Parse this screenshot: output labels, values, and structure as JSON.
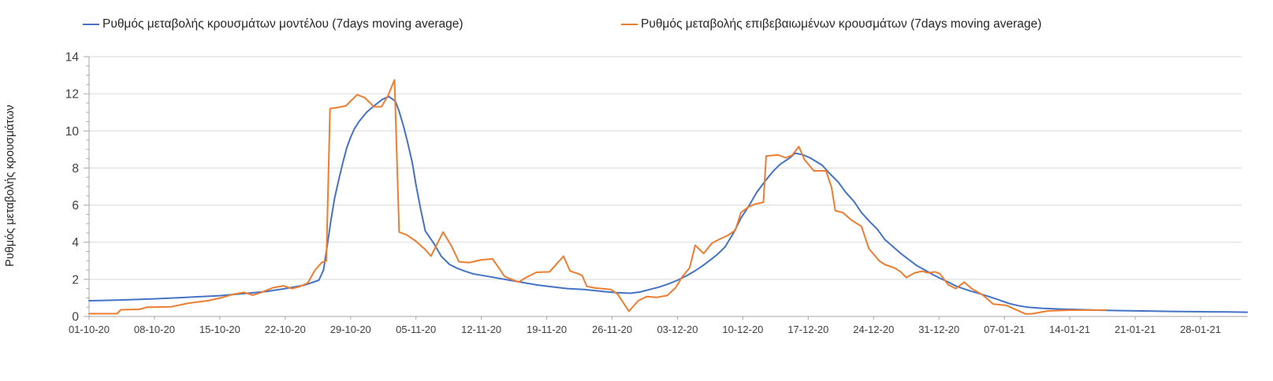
{
  "chart": {
    "y_axis": {
      "title": "Ρυθμός μεταβολής κρουσμάτων",
      "tick_labels": [
        "0",
        "2",
        "4",
        "6",
        "8",
        "10",
        "12",
        "14"
      ],
      "min": 0,
      "max": 14,
      "major_step": 2,
      "minor_step": 0.5
    },
    "x_axis": {
      "tick_labels": [
        "01-10-20",
        "08-10-20",
        "15-10-20",
        "22-10-20",
        "29-10-20",
        "05-11-20",
        "12-11-20",
        "19-11-20",
        "26-11-20",
        "03-12-20",
        "10-12-20",
        "17-12-20",
        "24-12-20",
        "31-12-20",
        "07-01-21",
        "14-01-21",
        "21-01-21",
        "28-01-21"
      ],
      "days_between_ticks": 7
    },
    "colors": {
      "grid": "#d9d9d9",
      "axis": "#a6a6a6",
      "tick_text": "#404040",
      "title_text": "#262626",
      "model_line": "#4472c4",
      "confirmed_line": "#ed7d31"
    }
  },
  "chart_data": {
    "type": "line",
    "title": "",
    "xlabel": "",
    "ylabel": "Ρυθμός μεταβολής κρουσμάτων",
    "x_unit": "days since 01-10-2020; axis labels every 7 days",
    "xlim": [
      0,
      124
    ],
    "ylim": [
      0,
      14
    ],
    "grid": true,
    "legend_position": "top",
    "series": [
      {
        "name": "Ρυθμός μεταβολής κρουσμάτων μοντέλου (7days moving average)",
        "color": "#4472c4",
        "points": [
          [
            0,
            0.85
          ],
          [
            3,
            0.88
          ],
          [
            7,
            0.95
          ],
          [
            10,
            1.02
          ],
          [
            14,
            1.12
          ],
          [
            17,
            1.25
          ],
          [
            19,
            1.35
          ],
          [
            21,
            1.5
          ],
          [
            23,
            1.68
          ],
          [
            24.6,
            1.95
          ],
          [
            25.1,
            2.5
          ],
          [
            25.5,
            3.8
          ],
          [
            25.9,
            5.2
          ],
          [
            26.3,
            6.4
          ],
          [
            26.8,
            7.5
          ],
          [
            27.2,
            8.35
          ],
          [
            27.6,
            9.1
          ],
          [
            28,
            9.65
          ],
          [
            28.4,
            10.1
          ],
          [
            28.9,
            10.5
          ],
          [
            29.7,
            11
          ],
          [
            30.4,
            11.3
          ],
          [
            31.4,
            11.7
          ],
          [
            32.1,
            11.85
          ],
          [
            32.8,
            11.6
          ],
          [
            33.2,
            11.05
          ],
          [
            33.7,
            10.2
          ],
          [
            34.1,
            9.4
          ],
          [
            34.6,
            8.3
          ],
          [
            35,
            7.1
          ],
          [
            35.5,
            5.8
          ],
          [
            36,
            4.6
          ],
          [
            36.9,
            3.95
          ],
          [
            37.7,
            3.25
          ],
          [
            38.6,
            2.8
          ],
          [
            39.4,
            2.6
          ],
          [
            40.2,
            2.45
          ],
          [
            41.1,
            2.3
          ],
          [
            42.8,
            2.15
          ],
          [
            44.5,
            2
          ],
          [
            46.2,
            1.85
          ],
          [
            47.9,
            1.7
          ],
          [
            49.5,
            1.6
          ],
          [
            51.2,
            1.5
          ],
          [
            53,
            1.45
          ],
          [
            55,
            1.35
          ],
          [
            56.5,
            1.28
          ],
          [
            58,
            1.25
          ],
          [
            59,
            1.32
          ],
          [
            60,
            1.45
          ],
          [
            61,
            1.58
          ],
          [
            62,
            1.75
          ],
          [
            63,
            1.95
          ],
          [
            64,
            2.2
          ],
          [
            64.7,
            2.4
          ],
          [
            65.6,
            2.7
          ],
          [
            66.4,
            3
          ],
          [
            67.3,
            3.35
          ],
          [
            68.1,
            3.75
          ],
          [
            69,
            4.5
          ],
          [
            69.8,
            5.3
          ],
          [
            70.7,
            6
          ],
          [
            71.5,
            6.7
          ],
          [
            72.4,
            7.3
          ],
          [
            73.2,
            7.8
          ],
          [
            74,
            8.2
          ],
          [
            74.9,
            8.5
          ],
          [
            75.6,
            8.8
          ],
          [
            76.4,
            8.72
          ],
          [
            77.2,
            8.55
          ],
          [
            78.5,
            8.15
          ],
          [
            79.3,
            7.7
          ],
          [
            80.2,
            7.25
          ],
          [
            81,
            6.7
          ],
          [
            81.9,
            6.2
          ],
          [
            82.7,
            5.6
          ],
          [
            83.5,
            5.15
          ],
          [
            84.4,
            4.7
          ],
          [
            85.2,
            4.15
          ],
          [
            86.1,
            3.75
          ],
          [
            86.9,
            3.4
          ],
          [
            87.8,
            3.05
          ],
          [
            88.6,
            2.75
          ],
          [
            89.5,
            2.5
          ],
          [
            90.3,
            2.27
          ],
          [
            91.1,
            2.06
          ],
          [
            92,
            1.85
          ],
          [
            92.8,
            1.64
          ],
          [
            93.7,
            1.48
          ],
          [
            94.5,
            1.35
          ],
          [
            95.4,
            1.22
          ],
          [
            96.5,
            1.05
          ],
          [
            97.5,
            0.88
          ],
          [
            98.5,
            0.7
          ],
          [
            99.5,
            0.58
          ],
          [
            100.5,
            0.5
          ],
          [
            102,
            0.44
          ],
          [
            104,
            0.4
          ],
          [
            106,
            0.37
          ],
          [
            108,
            0.34
          ],
          [
            110,
            0.32
          ],
          [
            112,
            0.3
          ],
          [
            114,
            0.29
          ],
          [
            116,
            0.27
          ],
          [
            118,
            0.26
          ],
          [
            120,
            0.25
          ],
          [
            122,
            0.24
          ],
          [
            124,
            0.23
          ]
        ]
      },
      {
        "name": "Ρυθμός μεταβολής επιβεβαιωμένων κρουσμάτων (7days moving average)",
        "color": "#ed7d31",
        "points": [
          [
            0,
            0.15
          ],
          [
            3,
            0.15
          ],
          [
            3.4,
            0.36
          ],
          [
            5.4,
            0.38
          ],
          [
            6.2,
            0.5
          ],
          [
            8.8,
            0.52
          ],
          [
            10.7,
            0.72
          ],
          [
            12.7,
            0.85
          ],
          [
            14.1,
            1
          ],
          [
            15.5,
            1.2
          ],
          [
            16.6,
            1.3
          ],
          [
            17.5,
            1.15
          ],
          [
            18.3,
            1.27
          ],
          [
            19.7,
            1.55
          ],
          [
            20.8,
            1.65
          ],
          [
            21.7,
            1.5
          ],
          [
            22.5,
            1.6
          ],
          [
            23.4,
            1.8
          ],
          [
            24.2,
            2.5
          ],
          [
            24.9,
            2.9
          ],
          [
            25.4,
            3
          ],
          [
            25.8,
            11.2
          ],
          [
            26.5,
            11.25
          ],
          [
            27.5,
            11.35
          ],
          [
            28.7,
            11.95
          ],
          [
            29.5,
            11.8
          ],
          [
            30.5,
            11.3
          ],
          [
            31.3,
            11.3
          ],
          [
            32,
            11.9
          ],
          [
            32.7,
            12.75
          ],
          [
            33.2,
            4.55
          ],
          [
            34,
            4.4
          ],
          [
            35,
            4.05
          ],
          [
            36,
            3.6
          ],
          [
            36.6,
            3.25
          ],
          [
            37.9,
            4.55
          ],
          [
            38.8,
            3.8
          ],
          [
            39.6,
            2.95
          ],
          [
            40.7,
            2.9
          ],
          [
            42,
            3.05
          ],
          [
            43.2,
            3.1
          ],
          [
            44.5,
            2.15
          ],
          [
            46,
            1.85
          ],
          [
            46.8,
            2.1
          ],
          [
            47.9,
            2.38
          ],
          [
            49.3,
            2.4
          ],
          [
            50.8,
            3.25
          ],
          [
            51.5,
            2.45
          ],
          [
            52.4,
            2.3
          ],
          [
            52.8,
            2.2
          ],
          [
            53.3,
            1.62
          ],
          [
            54.2,
            1.53
          ],
          [
            55.9,
            1.45
          ],
          [
            56.6,
            1.2
          ],
          [
            57.8,
            0.28
          ],
          [
            58.8,
            0.85
          ],
          [
            59.7,
            1.07
          ],
          [
            60.8,
            1.03
          ],
          [
            61.9,
            1.13
          ],
          [
            62.8,
            1.55
          ],
          [
            63.5,
            2.13
          ],
          [
            64.3,
            2.62
          ],
          [
            64.9,
            3.84
          ],
          [
            65.8,
            3.39
          ],
          [
            66.7,
            3.95
          ],
          [
            67.5,
            4.16
          ],
          [
            68.4,
            4.37
          ],
          [
            69.2,
            4.65
          ],
          [
            69.8,
            5.6
          ],
          [
            70.6,
            5.9
          ],
          [
            71.3,
            6.05
          ],
          [
            72.2,
            6.15
          ],
          [
            72.5,
            8.65
          ],
          [
            73.8,
            8.7
          ],
          [
            74.6,
            8.55
          ],
          [
            75.3,
            8.7
          ],
          [
            76,
            9.15
          ],
          [
            76.6,
            8.45
          ],
          [
            77.6,
            7.85
          ],
          [
            78.9,
            7.85
          ],
          [
            79.5,
            6.95
          ],
          [
            79.9,
            5.7
          ],
          [
            80.7,
            5.6
          ],
          [
            81.6,
            5.2
          ],
          [
            82.7,
            4.85
          ],
          [
            83.5,
            3.65
          ],
          [
            84.6,
            3
          ],
          [
            85.2,
            2.8
          ],
          [
            86.3,
            2.6
          ],
          [
            86.9,
            2.4
          ],
          [
            87.5,
            2.1
          ],
          [
            88.4,
            2.35
          ],
          [
            89.2,
            2.44
          ],
          [
            89.8,
            2.35
          ],
          [
            90.6,
            2.4
          ],
          [
            91.1,
            2.3
          ],
          [
            92,
            1.7
          ],
          [
            92.8,
            1.5
          ],
          [
            93.7,
            1.85
          ],
          [
            94.5,
            1.5
          ],
          [
            95.7,
            1.15
          ],
          [
            96.8,
            0.67
          ],
          [
            98.2,
            0.6
          ],
          [
            100.3,
            0.13
          ],
          [
            101,
            0.15
          ],
          [
            102.7,
            0.3
          ],
          [
            105.2,
            0.34
          ],
          [
            108.9,
            0.35
          ]
        ]
      }
    ]
  }
}
